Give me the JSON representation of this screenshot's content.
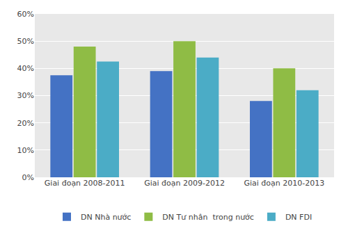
{
  "chart_data": {
    "type": "bar",
    "categories": [
      "Giai đoạn 2008-2011",
      "Giai đoạn 2009-2012",
      "Giai đoạn 2010-2013"
    ],
    "series": [
      {
        "name": "DN Nhà nước",
        "color": "#4472c4",
        "values": [
          0.375,
          0.39,
          0.28
        ]
      },
      {
        "name": "DN Tư nhân  trong nước",
        "color": "#8fbc45",
        "values": [
          0.48,
          0.5,
          0.4
        ]
      },
      {
        "name": "DN FDI",
        "color": "#4bacc6",
        "values": [
          0.425,
          0.44,
          0.32
        ]
      }
    ],
    "ylim": [
      0,
      0.6
    ],
    "yticks": [
      {
        "value": 0.0,
        "label": "0%"
      },
      {
        "value": 0.1,
        "label": "10%"
      },
      {
        "value": 0.2,
        "label": "20%"
      },
      {
        "value": 0.3,
        "label": "30%"
      },
      {
        "value": 0.4,
        "label": "40%"
      },
      {
        "value": 0.5,
        "label": "50%"
      },
      {
        "value": 0.6,
        "label": "60%"
      }
    ],
    "grid": true,
    "legend": "bottom"
  }
}
